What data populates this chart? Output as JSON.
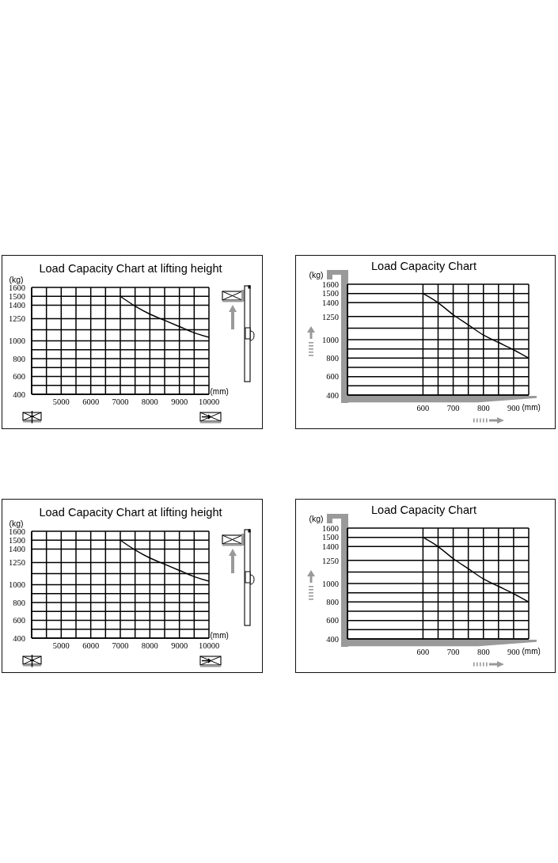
{
  "chart_data": [
    {
      "type": "line",
      "title": "Load Capacity Chart at lifting height",
      "xlabel": "(mm)",
      "ylabel": "(kg)",
      "x": [
        7000,
        7500,
        8000,
        8500,
        9000,
        9500,
        10000
      ],
      "values": [
        1500,
        1390,
        1300,
        1230,
        1160,
        1090,
        1040
      ],
      "color": "#000000",
      "xlim": [
        4000,
        10000
      ],
      "xticks": [
        {
          "value": 4000,
          "label": null
        },
        {
          "value": 4500,
          "label": null
        },
        5000,
        {
          "value": 5500,
          "label": null
        },
        6000,
        {
          "value": 6500,
          "label": null
        },
        7000,
        {
          "value": 7500,
          "label": null
        },
        8000,
        {
          "value": 8500,
          "label": null
        },
        9000,
        {
          "value": 9500,
          "label": null
        },
        10000
      ],
      "ylim": [
        400,
        1600
      ],
      "yticks": [
        400,
        {
          "value": 500,
          "label": null
        },
        600,
        {
          "value": 700,
          "label": null
        },
        800,
        {
          "value": 900,
          "label": null
        },
        1000,
        {
          "value": 1125,
          "label": null
        },
        1250,
        1400,
        1500,
        1600
      ],
      "grid": true
    },
    {
      "type": "line",
      "title": "Load Capacity Chart",
      "xlabel": "(mm)",
      "ylabel": "(kg)",
      "x": [
        600,
        650,
        700,
        750,
        800,
        850,
        900,
        950
      ],
      "values": [
        1500,
        1400,
        1270,
        1160,
        1050,
        970,
        890,
        800
      ],
      "color": "#000000",
      "xlim": [
        350,
        950
      ],
      "xticks": [
        600,
        {
          "value": 650,
          "label": null
        },
        700,
        {
          "value": 750,
          "label": null
        },
        800,
        {
          "value": 850,
          "label": null
        },
        900,
        {
          "value": 950,
          "label": null
        }
      ],
      "ylim": [
        400,
        1600
      ],
      "yticks": [
        400,
        {
          "value": 500,
          "label": null
        },
        600,
        {
          "value": 700,
          "label": null
        },
        800,
        {
          "value": 900,
          "label": null
        },
        1000,
        {
          "value": 1125,
          "label": null
        },
        1250,
        1400,
        1500,
        1600
      ],
      "grid": true
    },
    {
      "type": "line",
      "title": "Load Capacity Chart at lifting height",
      "xlabel": "(mm)",
      "ylabel": "(kg)",
      "x": [
        7000,
        7500,
        8000,
        8500,
        9000,
        9500,
        10000
      ],
      "values": [
        1500,
        1390,
        1300,
        1230,
        1160,
        1090,
        1040
      ],
      "color": "#000000",
      "xlim": [
        4000,
        10000
      ],
      "xticks": [
        {
          "value": 4000,
          "label": null
        },
        {
          "value": 4500,
          "label": null
        },
        5000,
        {
          "value": 5500,
          "label": null
        },
        6000,
        {
          "value": 6500,
          "label": null
        },
        7000,
        {
          "value": 7500,
          "label": null
        },
        8000,
        {
          "value": 8500,
          "label": null
        },
        9000,
        {
          "value": 9500,
          "label": null
        },
        10000
      ],
      "ylim": [
        400,
        1600
      ],
      "yticks": [
        400,
        {
          "value": 500,
          "label": null
        },
        600,
        {
          "value": 700,
          "label": null
        },
        800,
        {
          "value": 900,
          "label": null
        },
        1000,
        {
          "value": 1125,
          "label": null
        },
        1250,
        1400,
        1500,
        1600
      ],
      "grid": true
    },
    {
      "type": "line",
      "title": "Load Capacity Chart",
      "xlabel": "(mm)",
      "ylabel": "(kg)",
      "x": [
        600,
        650,
        700,
        750,
        800,
        850,
        900,
        950
      ],
      "values": [
        1500,
        1400,
        1270,
        1160,
        1050,
        970,
        890,
        800
      ],
      "color": "#000000",
      "xlim": [
        350,
        950
      ],
      "xticks": [
        600,
        {
          "value": 650,
          "label": null
        },
        700,
        {
          "value": 750,
          "label": null
        },
        800,
        {
          "value": 850,
          "label": null
        },
        900,
        {
          "value": 950,
          "label": null
        }
      ],
      "ylim": [
        400,
        1600
      ],
      "yticks": [
        400,
        {
          "value": 500,
          "label": null
        },
        600,
        {
          "value": 700,
          "label": null
        },
        800,
        {
          "value": 900,
          "label": null
        },
        1000,
        {
          "value": 1125,
          "label": null
        },
        1250,
        1400,
        1500,
        1600
      ],
      "grid": true
    }
  ]
}
